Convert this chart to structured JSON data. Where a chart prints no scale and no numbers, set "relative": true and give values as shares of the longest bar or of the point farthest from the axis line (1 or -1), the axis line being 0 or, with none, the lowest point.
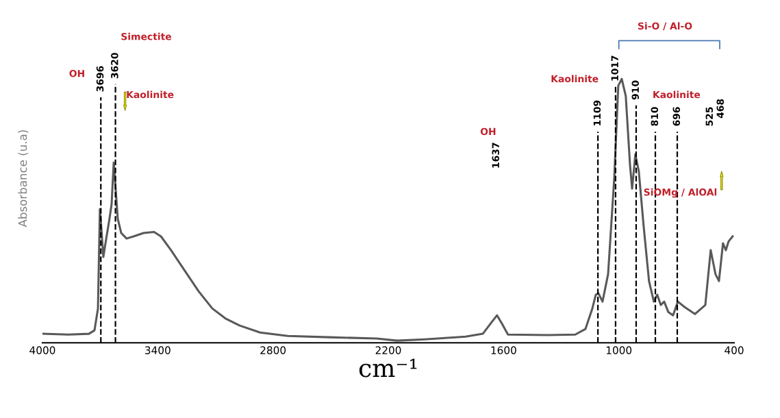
{
  "chart_data": {
    "type": "line",
    "relative": true,
    "xlabel": "cm⁻¹",
    "ylabel": "Absorbance (u.a)",
    "xlim": [
      4000,
      400
    ],
    "xticks": [
      4000,
      3400,
      2800,
      2200,
      1600,
      1000,
      400
    ],
    "tick_labels": "x",
    "grid": false,
    "marker": "none",
    "line_style": "solid",
    "series": [
      {
        "color": "#595959",
        "x": [
          4000,
          3865,
          3758,
          3729,
          3711,
          3701,
          3694,
          3683,
          3669,
          3651,
          3640,
          3629,
          3619,
          3608,
          3590,
          3562,
          3526,
          3473,
          3419,
          3383,
          3330,
          3259,
          3187,
          3116,
          3045,
          2973,
          2867,
          2724,
          2510,
          2261,
          2154,
          2011,
          1798,
          1708,
          1662,
          1634,
          1609,
          1577,
          1370,
          1227,
          1174,
          1138,
          1120,
          1106,
          1085,
          1056,
          1024,
          1003,
          985,
          964,
          942,
          931,
          914,
          896,
          871,
          843,
          818,
          800,
          782,
          764,
          743,
          718,
          693,
          657,
          604,
          550,
          522,
          497,
          479,
          458,
          443,
          429,
          408
        ],
        "values": [
          0.034,
          0.031,
          0.034,
          0.047,
          0.13,
          0.506,
          0.44,
          0.325,
          0.39,
          0.47,
          0.525,
          0.683,
          0.584,
          0.47,
          0.416,
          0.395,
          0.403,
          0.416,
          0.42,
          0.403,
          0.35,
          0.273,
          0.195,
          0.13,
          0.091,
          0.065,
          0.039,
          0.026,
          0.021,
          0.016,
          0.008,
          0.013,
          0.023,
          0.034,
          0.078,
          0.104,
          0.073,
          0.031,
          0.029,
          0.031,
          0.052,
          0.13,
          0.182,
          0.187,
          0.156,
          0.26,
          0.623,
          0.974,
          1.0,
          0.935,
          0.675,
          0.584,
          0.714,
          0.649,
          0.442,
          0.234,
          0.156,
          0.182,
          0.143,
          0.156,
          0.117,
          0.104,
          0.156,
          0.135,
          0.109,
          0.143,
          0.351,
          0.26,
          0.234,
          0.377,
          0.351,
          0.384,
          0.403
        ]
      }
    ],
    "ref_lines": [
      {
        "axis": "x",
        "value": 3696,
        "label": "3696",
        "color": "#000000",
        "line_style": "dashed"
      },
      {
        "axis": "x",
        "value": 3620,
        "label": "3620",
        "color": "#000000",
        "line_style": "dashed"
      },
      {
        "axis": "x",
        "value": 1109,
        "label": "1109",
        "color": "#000000",
        "line_style": "dashed"
      },
      {
        "axis": "x",
        "value": 1017,
        "label": "1017",
        "color": "#000000",
        "line_style": "dashed"
      },
      {
        "axis": "x",
        "value": 910,
        "label": "910",
        "color": "#000000",
        "line_style": "dashed"
      },
      {
        "axis": "x",
        "value": 810,
        "label": "810",
        "color": "#000000",
        "line_style": "dashed"
      },
      {
        "axis": "x",
        "value": 696,
        "label": "696",
        "color": "#000000",
        "line_style": "dashed"
      }
    ],
    "annotations": [
      "OH",
      "Simectite",
      "Kaolinite",
      "OH",
      "Kaolinite",
      "Kaolinite",
      "SiOMg / AlOAl",
      "Si-O / Al-O",
      "1637",
      "525",
      "468"
    ]
  }
}
